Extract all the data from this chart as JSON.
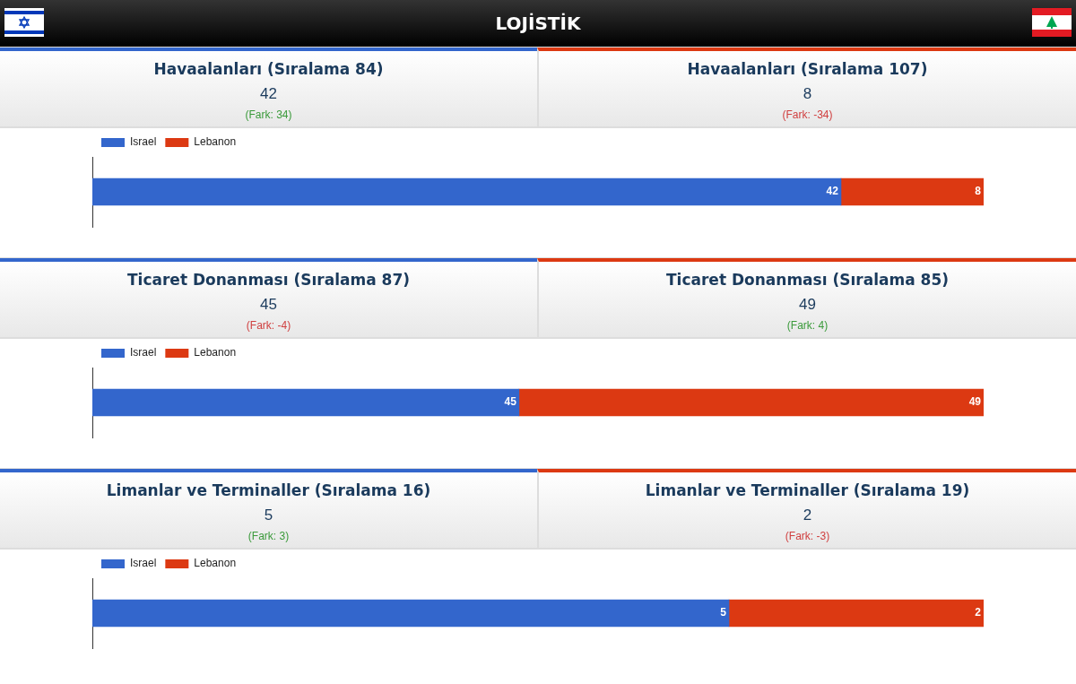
{
  "chart_data": [
    {
      "type": "bar",
      "title": "LOJİSTİK",
      "orientation": "horizontal",
      "stacked": true,
      "categories": [
        null
      ],
      "series": [
        {
          "name": "Israel",
          "color": "#3366cc",
          "values": [
            42
          ]
        },
        {
          "name": "Lebanon",
          "color": "#dc3912",
          "values": [
            8
          ]
        }
      ],
      "xlim": [
        0,
        50
      ],
      "tick_labels": false,
      "grid": false,
      "legend": "top left",
      "data_labels": true,
      "annotations": [
        "Havaalanları (Sıralama 84)",
        "42",
        "(Fark: 34)",
        "Havaalanları (Sıralama 107)",
        "8",
        "(Fark: -34)"
      ]
    },
    {
      "type": "bar",
      "orientation": "horizontal",
      "stacked": true,
      "categories": [
        null
      ],
      "series": [
        {
          "name": "Israel",
          "color": "#3366cc",
          "values": [
            45
          ]
        },
        {
          "name": "Lebanon",
          "color": "#dc3912",
          "values": [
            49
          ]
        }
      ],
      "xlim": [
        0,
        94
      ],
      "tick_labels": false,
      "grid": false,
      "legend": "top left",
      "data_labels": true,
      "annotations": [
        "Ticaret Donanması (Sıralama 87)",
        "45",
        "(Fark: -4)",
        "Ticaret Donanması (Sıralama 85)",
        "49",
        "(Fark: 4)"
      ]
    },
    {
      "type": "bar",
      "orientation": "horizontal",
      "stacked": true,
      "categories": [
        null
      ],
      "series": [
        {
          "name": "Israel",
          "color": "#3366cc",
          "values": [
            5
          ]
        },
        {
          "name": "Lebanon",
          "color": "#dc3912",
          "values": [
            2
          ]
        }
      ],
      "xlim": [
        0,
        7
      ],
      "tick_labels": false,
      "grid": false,
      "legend": "top left",
      "data_labels": true,
      "annotations": [
        "Limanlar ve Terminaller (Sıralama 16)",
        "5",
        "(Fark: 3)",
        "Limanlar ve Terminaller (Sıralama 19)",
        "2",
        "(Fark: -3)"
      ]
    }
  ]
}
